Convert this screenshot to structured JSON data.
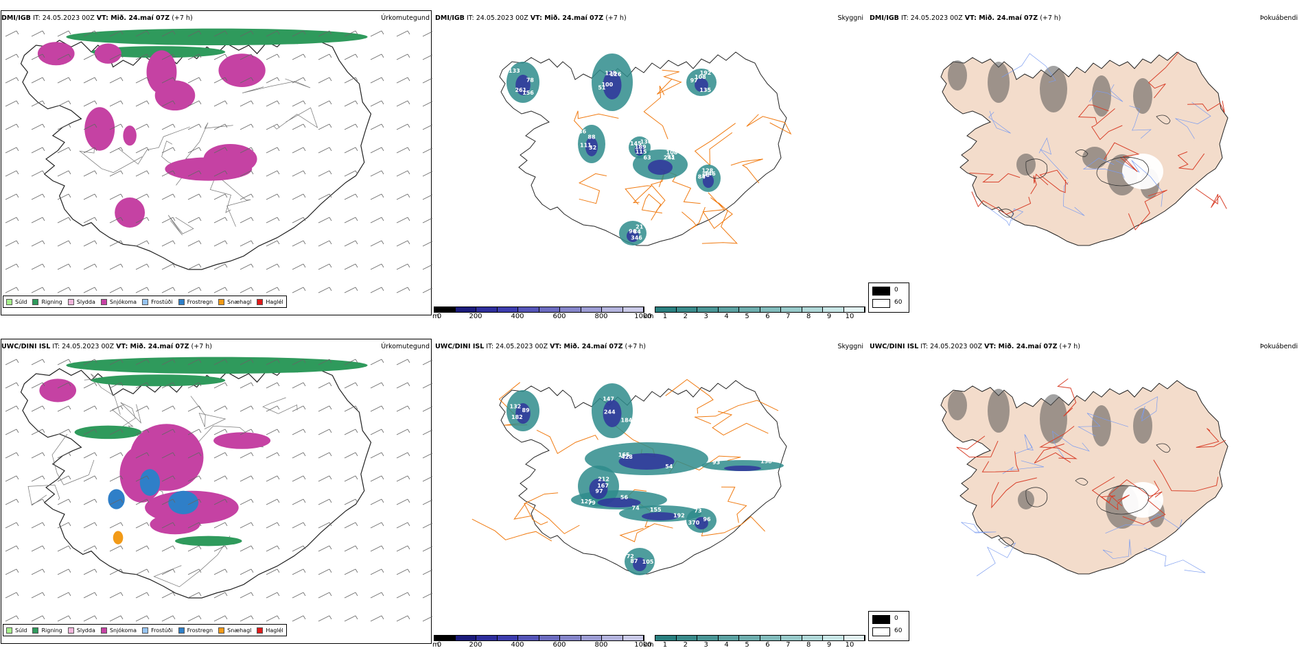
{
  "rows": [
    {
      "id": "dmi",
      "precip": {
        "model": "DMI/IGB",
        "run": " IT: 24.05.2023 00Z ",
        "vt_label": "VT:",
        "vt": " Mið. 24.maí 07Z",
        "lead": " (+7 h)",
        "param": "Úrkomutegund"
      },
      "cloud": {
        "model": "DMI/IGB",
        "run": " IT: 24.05.2023 00Z ",
        "vt_label": "VT:",
        "vt": " Mið. 24.maí 07Z",
        "lead": " (+7 h)",
        "param": "Skyggni"
      },
      "fog": {
        "model": "DMI/IGB",
        "run": " IT: 24.05.2023 00Z ",
        "vt_label": "VT:",
        "vt": " Mið. 24.maí 07Z",
        "lead": " (+7 h)",
        "param": "Þokuábendi"
      },
      "labels": [
        "133",
        "126",
        "135",
        "86",
        "130",
        "108",
        "146",
        "96",
        "78",
        "51",
        "97",
        "32",
        "189",
        "93",
        "128",
        "346",
        "261",
        "128",
        "192",
        "88",
        "115",
        "63",
        "68",
        "84",
        "156",
        "100",
        "108",
        "111",
        "145",
        "241",
        "84",
        "21"
      ]
    },
    {
      "id": "uwc",
      "precip": {
        "model": "UWC/DINI ISL",
        "run": " IT: 24.05.2023 00Z ",
        "vt_label": "VT:",
        "vt": " Mið. 24.maí 07Z",
        "lead": " (+7 h)",
        "param": "Úrkomutegund"
      },
      "cloud": {
        "model": "UWC/DINI ISL",
        "run": " IT: 24.05.2023 00Z ",
        "vt_label": "VT:",
        "vt": " Mið. 24.maí 07Z",
        "lead": " (+7 h)",
        "param": "Skyggni"
      },
      "fog": {
        "model": "UWC/DINI ISL",
        "run": " IT: 24.05.2023 00Z ",
        "vt_label": "VT:",
        "vt": " Mið. 24.maí 07Z",
        "lead": " (+7 h)",
        "param": "Þokuábendi"
      },
      "labels": [
        "182",
        "184",
        "165",
        "56",
        "74",
        "97",
        "96",
        "105",
        "138",
        "89",
        "244",
        "428",
        "79",
        "192",
        "167",
        "73",
        "87",
        "93",
        "132",
        "147",
        "54",
        "125",
        "155",
        "212",
        "370",
        "72"
      ]
    }
  ],
  "precip_legend": [
    {
      "label": "Súld",
      "color": "#a6f08c"
    },
    {
      "label": "Rigning",
      "color": "#2f9a5c"
    },
    {
      "label": "Slydda",
      "color": "#f3b6dc"
    },
    {
      "label": "Snjókoma",
      "color": "#c542a3"
    },
    {
      "label": "Frostúði",
      "color": "#96c4f2"
    },
    {
      "label": "Frostregn",
      "color": "#2f7fc8"
    },
    {
      "label": "Snæhagl",
      "color": "#f29a17"
    },
    {
      "label": "Haglél",
      "color": "#e01a1a"
    }
  ],
  "ceiling_bar": {
    "unit": "m",
    "ticks": [
      "0",
      "200",
      "400",
      "600",
      "800",
      "1000"
    ],
    "colors": [
      "#000000",
      "#1b1b7a",
      "#2e2e9c",
      "#3d3dae",
      "#5555b8",
      "#6c6cc0",
      "#8686ca",
      "#9d9dd4",
      "#b4b4de",
      "#cacae8"
    ]
  },
  "visibility_bar": {
    "unit": "km",
    "ticks": [
      "1",
      "2",
      "3",
      "4",
      "5",
      "6",
      "7",
      "8",
      "9",
      "10"
    ],
    "colors": [
      "#2a8080",
      "#3a8b8b",
      "#4a9696",
      "#5ca2a2",
      "#6eaeae",
      "#82bcbc",
      "#98caca",
      "#b0d8d8",
      "#c8e6e6",
      "#e2f2f2"
    ]
  },
  "fog_legend": {
    "high": "0",
    "low": "60"
  },
  "colors": {
    "land_fog": "#f3dccb",
    "road_orange": "#f07a10",
    "road_red": "#d8402a",
    "river_blue": "#7b9cf0",
    "snow": "#c542a3",
    "rain": "#2f9a5c",
    "visibility": "#2f8c8c",
    "ceiling": "#2e2e9c"
  }
}
